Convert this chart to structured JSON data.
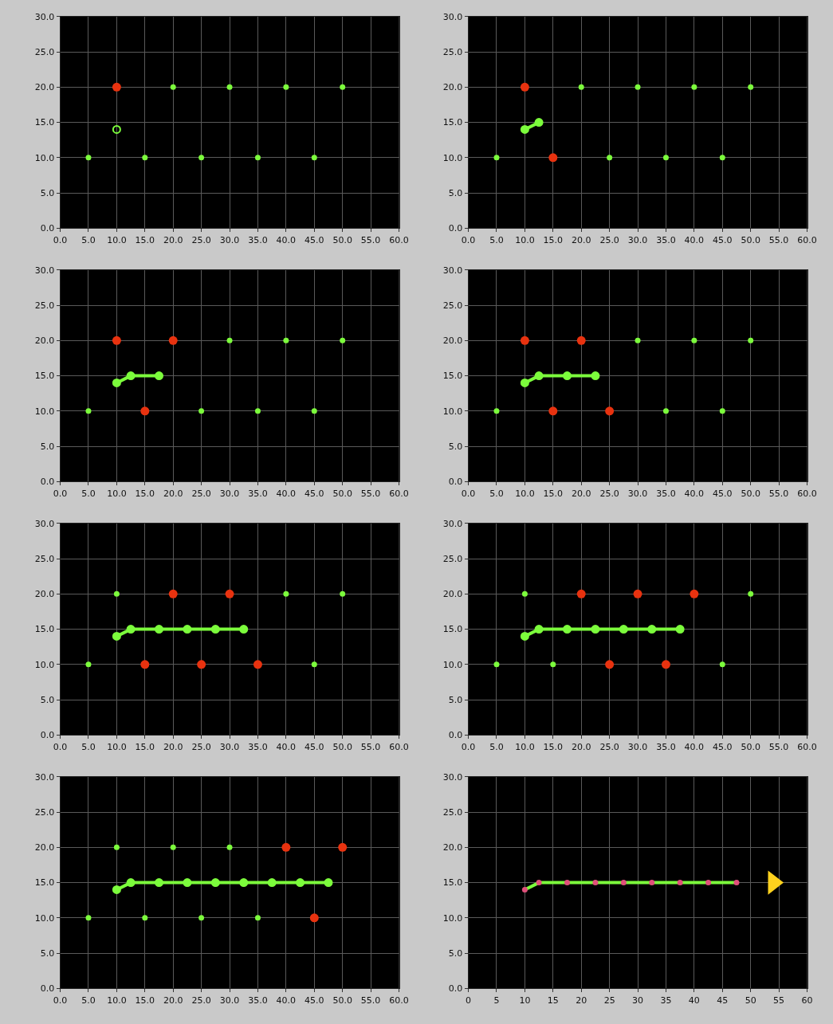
{
  "chart_data": [
    {
      "type": "scatter",
      "xlim": [
        0,
        60
      ],
      "ylim": [
        0,
        30
      ],
      "grid": true,
      "marker": "circle",
      "xticks": [
        {
          "value": 0,
          "label": "0.0"
        },
        {
          "value": 5,
          "label": "5.0"
        },
        {
          "value": 10,
          "label": "10.0"
        },
        {
          "value": 15,
          "label": "15.0"
        },
        {
          "value": 20,
          "label": "20.0"
        },
        {
          "value": 25,
          "label": "25.0"
        },
        {
          "value": 30,
          "label": "30.0"
        },
        {
          "value": 35,
          "label": "35.0"
        },
        {
          "value": 40,
          "label": "40.0"
        },
        {
          "value": 45,
          "label": "45.0"
        },
        {
          "value": 50,
          "label": "50.0"
        },
        {
          "value": 55,
          "label": "55.0"
        },
        {
          "value": 60,
          "label": "60.0"
        }
      ],
      "yticks": [
        {
          "value": 0,
          "label": "0.0"
        },
        {
          "value": 5,
          "label": "5.0"
        },
        {
          "value": 10,
          "label": "10.0"
        },
        {
          "value": 15,
          "label": "15.0"
        },
        {
          "value": 20,
          "label": "20.0"
        },
        {
          "value": 25,
          "label": "25.0"
        },
        {
          "value": 30,
          "label": "30.0"
        }
      ],
      "series": [
        {
          "color": "#7cfc3c",
          "x": [
            20,
            30,
            40,
            50,
            5,
            15,
            25,
            35,
            45
          ],
          "values": [
            20,
            20,
            20,
            20,
            10,
            10,
            10,
            10,
            10
          ]
        },
        {
          "color": "#e8320f",
          "x": [
            10
          ],
          "values": [
            20
          ]
        },
        {
          "type": "line",
          "color": "#7cfc3c",
          "x": [
            10
          ],
          "values": [
            14
          ]
        }
      ]
    },
    {
      "type": "scatter",
      "xlim": [
        0,
        60
      ],
      "ylim": [
        0,
        30
      ],
      "grid": true,
      "marker": "circle",
      "xticks": [
        {
          "value": 0,
          "label": "0.0"
        },
        {
          "value": 5,
          "label": "5.0"
        },
        {
          "value": 10,
          "label": "10.0"
        },
        {
          "value": 15,
          "label": "15.0"
        },
        {
          "value": 20,
          "label": "20.0"
        },
        {
          "value": 25,
          "label": "25.0"
        },
        {
          "value": 30,
          "label": "30.0"
        },
        {
          "value": 35,
          "label": "35.0"
        },
        {
          "value": 40,
          "label": "40.0"
        },
        {
          "value": 45,
          "label": "45.0"
        },
        {
          "value": 50,
          "label": "50.0"
        },
        {
          "value": 55,
          "label": "55.0"
        },
        {
          "value": 60,
          "label": "60.0"
        }
      ],
      "yticks": [
        {
          "value": 0,
          "label": "0.0"
        },
        {
          "value": 5,
          "label": "5.0"
        },
        {
          "value": 10,
          "label": "10.0"
        },
        {
          "value": 15,
          "label": "15.0"
        },
        {
          "value": 20,
          "label": "20.0"
        },
        {
          "value": 25,
          "label": "25.0"
        },
        {
          "value": 30,
          "label": "30.0"
        }
      ],
      "series": [
        {
          "color": "#7cfc3c",
          "x": [
            20,
            30,
            40,
            50,
            5,
            25,
            35,
            45
          ],
          "values": [
            20,
            20,
            20,
            20,
            10,
            10,
            10,
            10
          ]
        },
        {
          "color": "#e8320f",
          "x": [
            10,
            15
          ],
          "values": [
            20,
            10
          ]
        },
        {
          "type": "line",
          "color": "#7cfc3c",
          "x": [
            10,
            12.5
          ],
          "values": [
            14,
            15
          ]
        }
      ]
    },
    {
      "type": "scatter",
      "xlim": [
        0,
        60
      ],
      "ylim": [
        0,
        30
      ],
      "grid": true,
      "marker": "circle",
      "xticks": [
        {
          "value": 0,
          "label": "0.0"
        },
        {
          "value": 5,
          "label": "5.0"
        },
        {
          "value": 10,
          "label": "10.0"
        },
        {
          "value": 15,
          "label": "15.0"
        },
        {
          "value": 20,
          "label": "20.0"
        },
        {
          "value": 25,
          "label": "25.0"
        },
        {
          "value": 30,
          "label": "30.0"
        },
        {
          "value": 35,
          "label": "35.0"
        },
        {
          "value": 40,
          "label": "40.0"
        },
        {
          "value": 45,
          "label": "45.0"
        },
        {
          "value": 50,
          "label": "50.0"
        },
        {
          "value": 55,
          "label": "55.0"
        },
        {
          "value": 60,
          "label": "60.0"
        }
      ],
      "yticks": [
        {
          "value": 0,
          "label": "0.0"
        },
        {
          "value": 5,
          "label": "5.0"
        },
        {
          "value": 10,
          "label": "10.0"
        },
        {
          "value": 15,
          "label": "15.0"
        },
        {
          "value": 20,
          "label": "20.0"
        },
        {
          "value": 25,
          "label": "25.0"
        },
        {
          "value": 30,
          "label": "30.0"
        }
      ],
      "series": [
        {
          "color": "#7cfc3c",
          "x": [
            30,
            40,
            50,
            5,
            25,
            35,
            45
          ],
          "values": [
            20,
            20,
            20,
            10,
            10,
            10,
            10
          ]
        },
        {
          "color": "#e8320f",
          "x": [
            10,
            20,
            15
          ],
          "values": [
            20,
            20,
            10
          ]
        },
        {
          "type": "line",
          "color": "#7cfc3c",
          "x": [
            10,
            12.5,
            17.5
          ],
          "values": [
            14,
            15,
            15
          ]
        }
      ]
    },
    {
      "type": "scatter",
      "xlim": [
        0,
        60
      ],
      "ylim": [
        0,
        30
      ],
      "grid": true,
      "marker": "circle",
      "xticks": [
        {
          "value": 0,
          "label": "0.0"
        },
        {
          "value": 5,
          "label": "5.0"
        },
        {
          "value": 10,
          "label": "10.0"
        },
        {
          "value": 15,
          "label": "15.0"
        },
        {
          "value": 20,
          "label": "20.0"
        },
        {
          "value": 25,
          "label": "25.0"
        },
        {
          "value": 30,
          "label": "30.0"
        },
        {
          "value": 35,
          "label": "35.0"
        },
        {
          "value": 40,
          "label": "40.0"
        },
        {
          "value": 45,
          "label": "45.0"
        },
        {
          "value": 50,
          "label": "50.0"
        },
        {
          "value": 55,
          "label": "55.0"
        },
        {
          "value": 60,
          "label": "60.0"
        }
      ],
      "yticks": [
        {
          "value": 0,
          "label": "0.0"
        },
        {
          "value": 5,
          "label": "5.0"
        },
        {
          "value": 10,
          "label": "10.0"
        },
        {
          "value": 15,
          "label": "15.0"
        },
        {
          "value": 20,
          "label": "20.0"
        },
        {
          "value": 25,
          "label": "25.0"
        },
        {
          "value": 30,
          "label": "30.0"
        }
      ],
      "series": [
        {
          "color": "#7cfc3c",
          "x": [
            30,
            40,
            50,
            5,
            35,
            45
          ],
          "values": [
            20,
            20,
            20,
            10,
            10,
            10
          ]
        },
        {
          "color": "#e8320f",
          "x": [
            10,
            20,
            15,
            25
          ],
          "values": [
            20,
            20,
            10,
            10
          ]
        },
        {
          "type": "line",
          "color": "#7cfc3c",
          "x": [
            10,
            12.5,
            17.5,
            22.5
          ],
          "values": [
            14,
            15,
            15,
            15
          ]
        }
      ]
    },
    {
      "type": "scatter",
      "xlim": [
        0,
        60
      ],
      "ylim": [
        0,
        30
      ],
      "grid": true,
      "marker": "circle",
      "xticks": [
        {
          "value": 0,
          "label": "0.0"
        },
        {
          "value": 5,
          "label": "5.0"
        },
        {
          "value": 10,
          "label": "10.0"
        },
        {
          "value": 15,
          "label": "15.0"
        },
        {
          "value": 20,
          "label": "20.0"
        },
        {
          "value": 25,
          "label": "25.0"
        },
        {
          "value": 30,
          "label": "30.0"
        },
        {
          "value": 35,
          "label": "35.0"
        },
        {
          "value": 40,
          "label": "40.0"
        },
        {
          "value": 45,
          "label": "45.0"
        },
        {
          "value": 50,
          "label": "50.0"
        },
        {
          "value": 55,
          "label": "55.0"
        },
        {
          "value": 60,
          "label": "60.0"
        }
      ],
      "yticks": [
        {
          "value": 0,
          "label": "0.0"
        },
        {
          "value": 5,
          "label": "5.0"
        },
        {
          "value": 10,
          "label": "10.0"
        },
        {
          "value": 15,
          "label": "15.0"
        },
        {
          "value": 20,
          "label": "20.0"
        },
        {
          "value": 25,
          "label": "25.0"
        },
        {
          "value": 30,
          "label": "30.0"
        }
      ],
      "series": [
        {
          "color": "#7cfc3c",
          "x": [
            10,
            40,
            50,
            5,
            45
          ],
          "values": [
            20,
            20,
            20,
            10,
            10
          ]
        },
        {
          "color": "#e8320f",
          "x": [
            20,
            30,
            15,
            25,
            35
          ],
          "values": [
            20,
            20,
            10,
            10,
            10
          ]
        },
        {
          "type": "line",
          "color": "#7cfc3c",
          "x": [
            10,
            12.5,
            17.5,
            22.5,
            27.5,
            32.5
          ],
          "values": [
            14,
            15,
            15,
            15,
            15,
            15
          ]
        }
      ]
    },
    {
      "type": "scatter",
      "xlim": [
        0,
        60
      ],
      "ylim": [
        0,
        30
      ],
      "grid": true,
      "marker": "circle",
      "xticks": [
        {
          "value": 0,
          "label": "0.0"
        },
        {
          "value": 5,
          "label": "5.0"
        },
        {
          "value": 10,
          "label": "10.0"
        },
        {
          "value": 15,
          "label": "15.0"
        },
        {
          "value": 20,
          "label": "20.0"
        },
        {
          "value": 25,
          "label": "25.0"
        },
        {
          "value": 30,
          "label": "30.0"
        },
        {
          "value": 35,
          "label": "35.0"
        },
        {
          "value": 40,
          "label": "40.0"
        },
        {
          "value": 45,
          "label": "45.0"
        },
        {
          "value": 50,
          "label": "50.0"
        },
        {
          "value": 55,
          "label": "55.0"
        },
        {
          "value": 60,
          "label": "60.0"
        }
      ],
      "yticks": [
        {
          "value": 0,
          "label": "0.0"
        },
        {
          "value": 5,
          "label": "5.0"
        },
        {
          "value": 10,
          "label": "10.0"
        },
        {
          "value": 15,
          "label": "15.0"
        },
        {
          "value": 20,
          "label": "20.0"
        },
        {
          "value": 25,
          "label": "25.0"
        },
        {
          "value": 30,
          "label": "30.0"
        }
      ],
      "series": [
        {
          "color": "#7cfc3c",
          "x": [
            10,
            50,
            5,
            15,
            45
          ],
          "values": [
            20,
            20,
            10,
            10,
            10
          ]
        },
        {
          "color": "#e8320f",
          "x": [
            20,
            30,
            40,
            25,
            35
          ],
          "values": [
            20,
            20,
            20,
            10,
            10
          ]
        },
        {
          "type": "line",
          "color": "#7cfc3c",
          "x": [
            10,
            12.5,
            17.5,
            22.5,
            27.5,
            32.5,
            37.5
          ],
          "values": [
            14,
            15,
            15,
            15,
            15,
            15,
            15
          ]
        }
      ]
    },
    {
      "type": "scatter",
      "xlim": [
        0,
        60
      ],
      "ylim": [
        0,
        30
      ],
      "grid": true,
      "marker": "circle",
      "xticks": [
        {
          "value": 0,
          "label": "0.0"
        },
        {
          "value": 5,
          "label": "5.0"
        },
        {
          "value": 10,
          "label": "10.0"
        },
        {
          "value": 15,
          "label": "15.0"
        },
        {
          "value": 20,
          "label": "20.0"
        },
        {
          "value": 25,
          "label": "25.0"
        },
        {
          "value": 30,
          "label": "30.0"
        },
        {
          "value": 35,
          "label": "35.0"
        },
        {
          "value": 40,
          "label": "40.0"
        },
        {
          "value": 45,
          "label": "45.0"
        },
        {
          "value": 50,
          "label": "50.0"
        },
        {
          "value": 55,
          "label": "55.0"
        },
        {
          "value": 60,
          "label": "60.0"
        }
      ],
      "yticks": [
        {
          "value": 0,
          "label": "0.0"
        },
        {
          "value": 5,
          "label": "5.0"
        },
        {
          "value": 10,
          "label": "10.0"
        },
        {
          "value": 15,
          "label": "15.0"
        },
        {
          "value": 20,
          "label": "20.0"
        },
        {
          "value": 25,
          "label": "25.0"
        },
        {
          "value": 30,
          "label": "30.0"
        }
      ],
      "series": [
        {
          "color": "#7cfc3c",
          "x": [
            10,
            20,
            30,
            5,
            15,
            25,
            35
          ],
          "values": [
            20,
            20,
            20,
            10,
            10,
            10,
            10
          ]
        },
        {
          "color": "#e8320f",
          "x": [
            40,
            50,
            45
          ],
          "values": [
            20,
            20,
            10
          ]
        },
        {
          "type": "line",
          "color": "#7cfc3c",
          "x": [
            10,
            12.5,
            17.5,
            22.5,
            27.5,
            32.5,
            37.5,
            42.5,
            47.5
          ],
          "values": [
            14,
            15,
            15,
            15,
            15,
            15,
            15,
            15,
            15
          ]
        }
      ]
    },
    {
      "type": "scatter",
      "xlim": [
        0,
        60
      ],
      "ylim": [
        0,
        30
      ],
      "grid": true,
      "xticks": [
        0,
        5,
        10,
        15,
        20,
        25,
        30,
        35,
        40,
        45,
        50,
        55,
        60
      ],
      "yticks": [
        {
          "value": 0,
          "label": "0.0"
        },
        {
          "value": 5,
          "label": "5.0"
        },
        {
          "value": 10,
          "label": "10.0"
        },
        {
          "value": 15,
          "label": "15.0"
        },
        {
          "value": 20,
          "label": "20.0"
        },
        {
          "value": 25,
          "label": "25.0"
        },
        {
          "value": 30,
          "label": "30.0"
        }
      ],
      "series": [
        {
          "type": "line",
          "color": "#7cfc3c",
          "marker": "none",
          "x": [
            10,
            12.5,
            17.5,
            22.5,
            27.5,
            32.5,
            37.5,
            42.5,
            47.5
          ],
          "values": [
            14,
            15,
            15,
            15,
            15,
            15,
            15,
            15,
            15
          ]
        },
        {
          "color": "#e0507a",
          "x": [
            10,
            12.5,
            17.5,
            22.5,
            27.5,
            32.5,
            37.5,
            42.5,
            47.5
          ],
          "values": [
            14,
            15,
            15,
            15,
            15,
            15,
            15,
            15,
            15
          ]
        },
        {
          "color": "#ffd21e",
          "marker": "triangle",
          "x": [
            54
          ],
          "values": [
            15
          ]
        }
      ]
    }
  ]
}
